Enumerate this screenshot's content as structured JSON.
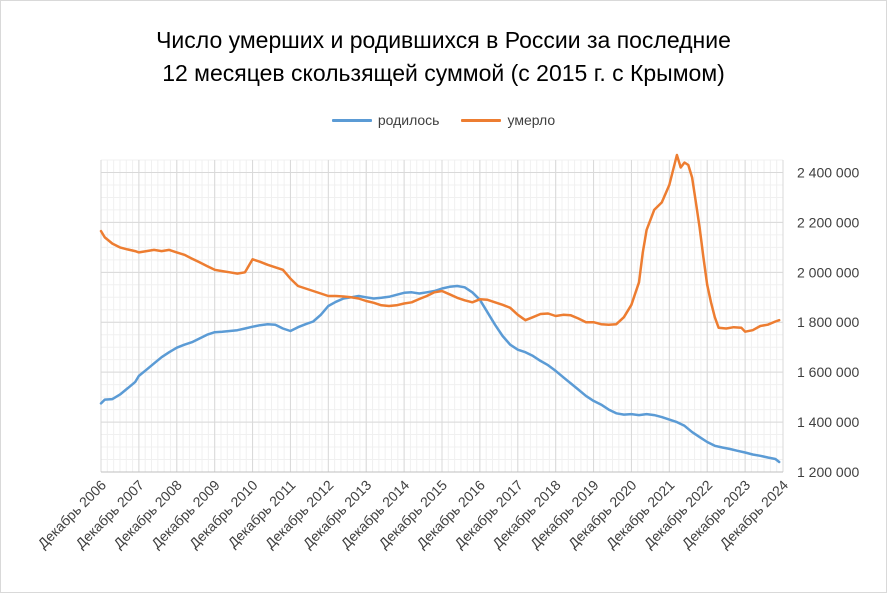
{
  "chart_data": {
    "type": "line",
    "title_lines": [
      "Число умерших и родившихся в России за последние",
      "12 месяцев скользящей суммой (с 2015 г. с Крымом)"
    ],
    "xlabel": "",
    "ylabel": "",
    "ylim": [
      1200000,
      2400000
    ],
    "y_ticks": [
      {
        "value": 1200000,
        "label": "1 200 000"
      },
      {
        "value": 1400000,
        "label": "1 400 000"
      },
      {
        "value": 1600000,
        "label": "1 600 000"
      },
      {
        "value": 1800000,
        "label": "1 800 000"
      },
      {
        "value": 2000000,
        "label": "2 000 000"
      },
      {
        "value": 2200000,
        "label": "2 200 000"
      },
      {
        "value": 2400000,
        "label": "2 400 000"
      }
    ],
    "x_ticks": [
      {
        "year": 2006,
        "label": "Декабрь 2006"
      },
      {
        "year": 2007,
        "label": "Декабрь 2007"
      },
      {
        "year": 2008,
        "label": "Декабрь 2008"
      },
      {
        "year": 2009,
        "label": "Декабрь 2009"
      },
      {
        "year": 2010,
        "label": "Декабрь 2010"
      },
      {
        "year": 2011,
        "label": "Декабрь 2011"
      },
      {
        "year": 2012,
        "label": "Декабрь 2012"
      },
      {
        "year": 2013,
        "label": "Декабрь 2013"
      },
      {
        "year": 2014,
        "label": "Декабрь 2014"
      },
      {
        "year": 2015,
        "label": "Декабрь 2015"
      },
      {
        "year": 2016,
        "label": "Декабрь 2016"
      },
      {
        "year": 2017,
        "label": "Декабрь 2017"
      },
      {
        "year": 2018,
        "label": "Декабрь 2018"
      },
      {
        "year": 2019,
        "label": "Декабрь 2019"
      },
      {
        "year": 2020,
        "label": "Декабрь 2020"
      },
      {
        "year": 2021,
        "label": "Декабрь 2021"
      },
      {
        "year": 2022,
        "label": "Декабрь 2022"
      },
      {
        "year": 2023,
        "label": "Декабрь 2023"
      },
      {
        "year": 2024,
        "label": "Декабрь 2024"
      }
    ],
    "grid": true,
    "legend_position": "top",
    "series": [
      {
        "name": "родилось",
        "color": "#5b9bd5",
        "points": [
          [
            2006.0,
            1475000
          ],
          [
            2006.1,
            1490000
          ],
          [
            2006.3,
            1492000
          ],
          [
            2006.5,
            1510000
          ],
          [
            2006.7,
            1535000
          ],
          [
            2006.9,
            1560000
          ],
          [
            2007.0,
            1585000
          ],
          [
            2007.2,
            1610000
          ],
          [
            2007.4,
            1635000
          ],
          [
            2007.6,
            1660000
          ],
          [
            2007.8,
            1680000
          ],
          [
            2008.0,
            1698000
          ],
          [
            2008.2,
            1710000
          ],
          [
            2008.4,
            1720000
          ],
          [
            2008.6,
            1735000
          ],
          [
            2008.8,
            1750000
          ],
          [
            2009.0,
            1760000
          ],
          [
            2009.2,
            1762000
          ],
          [
            2009.4,
            1765000
          ],
          [
            2009.6,
            1768000
          ],
          [
            2009.8,
            1775000
          ],
          [
            2010.0,
            1782000
          ],
          [
            2010.2,
            1788000
          ],
          [
            2010.4,
            1792000
          ],
          [
            2010.6,
            1790000
          ],
          [
            2010.8,
            1775000
          ],
          [
            2011.0,
            1765000
          ],
          [
            2011.2,
            1780000
          ],
          [
            2011.4,
            1792000
          ],
          [
            2011.6,
            1803000
          ],
          [
            2011.8,
            1830000
          ],
          [
            2012.0,
            1865000
          ],
          [
            2012.2,
            1882000
          ],
          [
            2012.4,
            1895000
          ],
          [
            2012.6,
            1900000
          ],
          [
            2012.8,
            1905000
          ],
          [
            2013.0,
            1900000
          ],
          [
            2013.2,
            1895000
          ],
          [
            2013.4,
            1898000
          ],
          [
            2013.6,
            1902000
          ],
          [
            2013.8,
            1910000
          ],
          [
            2014.0,
            1918000
          ],
          [
            2014.2,
            1920000
          ],
          [
            2014.4,
            1915000
          ],
          [
            2014.6,
            1920000
          ],
          [
            2014.8,
            1925000
          ],
          [
            2015.0,
            1935000
          ],
          [
            2015.2,
            1942000
          ],
          [
            2015.4,
            1945000
          ],
          [
            2015.6,
            1940000
          ],
          [
            2015.8,
            1920000
          ],
          [
            2016.0,
            1890000
          ],
          [
            2016.2,
            1840000
          ],
          [
            2016.4,
            1790000
          ],
          [
            2016.6,
            1745000
          ],
          [
            2016.8,
            1710000
          ],
          [
            2017.0,
            1690000
          ],
          [
            2017.2,
            1680000
          ],
          [
            2017.4,
            1665000
          ],
          [
            2017.6,
            1645000
          ],
          [
            2017.8,
            1628000
          ],
          [
            2018.0,
            1605000
          ],
          [
            2018.2,
            1580000
          ],
          [
            2018.4,
            1555000
          ],
          [
            2018.6,
            1530000
          ],
          [
            2018.8,
            1505000
          ],
          [
            2019.0,
            1485000
          ],
          [
            2019.2,
            1470000
          ],
          [
            2019.4,
            1450000
          ],
          [
            2019.6,
            1435000
          ],
          [
            2019.8,
            1430000
          ],
          [
            2020.0,
            1432000
          ],
          [
            2020.2,
            1428000
          ],
          [
            2020.4,
            1432000
          ],
          [
            2020.6,
            1428000
          ],
          [
            2020.8,
            1420000
          ],
          [
            2021.0,
            1410000
          ],
          [
            2021.2,
            1400000
          ],
          [
            2021.4,
            1385000
          ],
          [
            2021.6,
            1360000
          ],
          [
            2021.8,
            1340000
          ],
          [
            2022.0,
            1320000
          ],
          [
            2022.2,
            1305000
          ],
          [
            2022.4,
            1298000
          ],
          [
            2022.6,
            1292000
          ],
          [
            2022.8,
            1285000
          ],
          [
            2023.0,
            1278000
          ],
          [
            2023.2,
            1270000
          ],
          [
            2023.4,
            1265000
          ],
          [
            2023.6,
            1258000
          ],
          [
            2023.8,
            1252000
          ],
          [
            2023.9,
            1240000
          ]
        ]
      },
      {
        "name": "умерло",
        "color": "#ed7d31",
        "points": [
          [
            2006.0,
            2165000
          ],
          [
            2006.1,
            2140000
          ],
          [
            2006.3,
            2115000
          ],
          [
            2006.5,
            2100000
          ],
          [
            2006.7,
            2092000
          ],
          [
            2006.9,
            2085000
          ],
          [
            2007.0,
            2080000
          ],
          [
            2007.2,
            2085000
          ],
          [
            2007.4,
            2090000
          ],
          [
            2007.6,
            2085000
          ],
          [
            2007.8,
            2090000
          ],
          [
            2008.0,
            2080000
          ],
          [
            2008.2,
            2070000
          ],
          [
            2008.4,
            2055000
          ],
          [
            2008.6,
            2040000
          ],
          [
            2008.8,
            2025000
          ],
          [
            2009.0,
            2010000
          ],
          [
            2009.2,
            2005000
          ],
          [
            2009.4,
            2000000
          ],
          [
            2009.6,
            1995000
          ],
          [
            2009.8,
            2000000
          ],
          [
            2010.0,
            2052000
          ],
          [
            2010.2,
            2042000
          ],
          [
            2010.4,
            2030000
          ],
          [
            2010.6,
            2020000
          ],
          [
            2010.8,
            2010000
          ],
          [
            2011.0,
            1975000
          ],
          [
            2011.2,
            1945000
          ],
          [
            2011.4,
            1935000
          ],
          [
            2011.6,
            1925000
          ],
          [
            2011.8,
            1915000
          ],
          [
            2012.0,
            1905000
          ],
          [
            2012.2,
            1905000
          ],
          [
            2012.4,
            1903000
          ],
          [
            2012.6,
            1900000
          ],
          [
            2012.8,
            1895000
          ],
          [
            2013.0,
            1885000
          ],
          [
            2013.2,
            1878000
          ],
          [
            2013.4,
            1868000
          ],
          [
            2013.6,
            1865000
          ],
          [
            2013.8,
            1868000
          ],
          [
            2014.0,
            1875000
          ],
          [
            2014.2,
            1880000
          ],
          [
            2014.4,
            1893000
          ],
          [
            2014.6,
            1905000
          ],
          [
            2014.8,
            1920000
          ],
          [
            2015.0,
            1925000
          ],
          [
            2015.2,
            1912000
          ],
          [
            2015.4,
            1898000
          ],
          [
            2015.6,
            1888000
          ],
          [
            2015.8,
            1880000
          ],
          [
            2016.0,
            1892000
          ],
          [
            2016.2,
            1890000
          ],
          [
            2016.4,
            1880000
          ],
          [
            2016.6,
            1870000
          ],
          [
            2016.8,
            1858000
          ],
          [
            2017.0,
            1830000
          ],
          [
            2017.2,
            1808000
          ],
          [
            2017.4,
            1820000
          ],
          [
            2017.6,
            1833000
          ],
          [
            2017.8,
            1835000
          ],
          [
            2018.0,
            1825000
          ],
          [
            2018.2,
            1830000
          ],
          [
            2018.4,
            1828000
          ],
          [
            2018.6,
            1815000
          ],
          [
            2018.8,
            1800000
          ],
          [
            2019.0,
            1800000
          ],
          [
            2019.2,
            1792000
          ],
          [
            2019.4,
            1790000
          ],
          [
            2019.6,
            1792000
          ],
          [
            2019.8,
            1820000
          ],
          [
            2020.0,
            1870000
          ],
          [
            2020.2,
            1960000
          ],
          [
            2020.3,
            2080000
          ],
          [
            2020.4,
            2170000
          ],
          [
            2020.6,
            2250000
          ],
          [
            2020.8,
            2280000
          ],
          [
            2021.0,
            2350000
          ],
          [
            2021.1,
            2410000
          ],
          [
            2021.2,
            2470000
          ],
          [
            2021.3,
            2420000
          ],
          [
            2021.4,
            2440000
          ],
          [
            2021.5,
            2430000
          ],
          [
            2021.6,
            2380000
          ],
          [
            2021.7,
            2280000
          ],
          [
            2021.8,
            2180000
          ],
          [
            2021.9,
            2060000
          ],
          [
            2022.0,
            1950000
          ],
          [
            2022.1,
            1880000
          ],
          [
            2022.2,
            1820000
          ],
          [
            2022.3,
            1778000
          ],
          [
            2022.5,
            1775000
          ],
          [
            2022.7,
            1780000
          ],
          [
            2022.9,
            1778000
          ],
          [
            2023.0,
            1762000
          ],
          [
            2023.2,
            1768000
          ],
          [
            2023.4,
            1785000
          ],
          [
            2023.6,
            1790000
          ],
          [
            2023.8,
            1803000
          ],
          [
            2023.9,
            1808000
          ]
        ]
      }
    ]
  }
}
